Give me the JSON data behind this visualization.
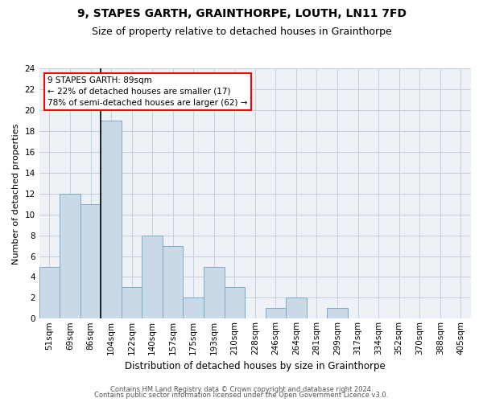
{
  "title": "9, STAPES GARTH, GRAINTHORPE, LOUTH, LN11 7FD",
  "subtitle": "Size of property relative to detached houses in Grainthorpe",
  "xlabel": "Distribution of detached houses by size in Grainthorpe",
  "ylabel": "Number of detached properties",
  "categories": [
    "51sqm",
    "69sqm",
    "86sqm",
    "104sqm",
    "122sqm",
    "140sqm",
    "157sqm",
    "175sqm",
    "193sqm",
    "210sqm",
    "228sqm",
    "246sqm",
    "264sqm",
    "281sqm",
    "299sqm",
    "317sqm",
    "334sqm",
    "352sqm",
    "370sqm",
    "388sqm",
    "405sqm"
  ],
  "values": [
    5,
    12,
    11,
    19,
    3,
    8,
    7,
    2,
    5,
    3,
    0,
    1,
    2,
    0,
    1,
    0,
    0,
    0,
    0,
    0,
    0
  ],
  "bar_color": "#c9d9e8",
  "bar_edgecolor": "#7aaac8",
  "vline_index": 2,
  "vline_color": "black",
  "vline_linewidth": 1.2,
  "annotation_box_text": "9 STAPES GARTH: 89sqm\n← 22% of detached houses are smaller (17)\n78% of semi-detached houses are larger (62) →",
  "annotation_box_color": "red",
  "annotation_text_fontsize": 7.5,
  "ylim": [
    0,
    24
  ],
  "yticks": [
    0,
    2,
    4,
    6,
    8,
    10,
    12,
    14,
    16,
    18,
    20,
    22,
    24
  ],
  "footer1": "Contains HM Land Registry data © Crown copyright and database right 2024.",
  "footer2": "Contains public sector information licensed under the Open Government Licence v3.0.",
  "background_color": "#eef2f7",
  "grid_color": "#c5d0de",
  "title_fontsize": 10,
  "subtitle_fontsize": 9,
  "xlabel_fontsize": 8.5,
  "ylabel_fontsize": 8,
  "tick_fontsize": 7.5,
  "footer_fontsize": 6
}
